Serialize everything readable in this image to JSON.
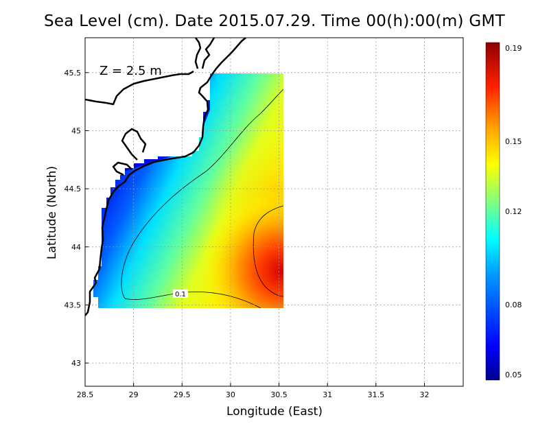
{
  "chart_data": {
    "type": "heatmap",
    "title": "Sea Level (cm). Date 2015.07.29. Time 00(h):00(m) GMT",
    "annotation": "Z = 2.5 m",
    "xlabel": "Longitude (East)",
    "ylabel": "Latitude (North)",
    "xlim": [
      28.5,
      32.4
    ],
    "ylim": [
      42.8,
      45.8
    ],
    "x_ticks": [
      "28.5",
      "29",
      "29.5",
      "30",
      "30.5",
      "31",
      "31.5",
      "32"
    ],
    "x_tick_values": [
      28.5,
      29,
      29.5,
      30,
      30.5,
      31,
      31.5,
      32
    ],
    "y_ticks": [
      "43",
      "43.5",
      "44",
      "44.5",
      "45",
      "45.5"
    ],
    "y_tick_values": [
      43,
      43.5,
      44,
      44.5,
      45,
      45.5
    ],
    "grid": true,
    "colorbar": {
      "ticks": [
        "0.19",
        "0.15",
        "0.12",
        "0.08",
        "0.05"
      ],
      "tick_values": [
        0.19,
        0.15,
        0.12,
        0.08,
        0.05
      ],
      "min": 0.05,
      "max": 0.19
    },
    "contour_label": "0.1",
    "data_domain": {
      "lon": [
        28.63,
        30.52
      ],
      "lat": [
        43.48,
        45.49
      ]
    },
    "maximum": {
      "lon": 30.52,
      "lat": 43.8,
      "value": 0.19
    }
  }
}
